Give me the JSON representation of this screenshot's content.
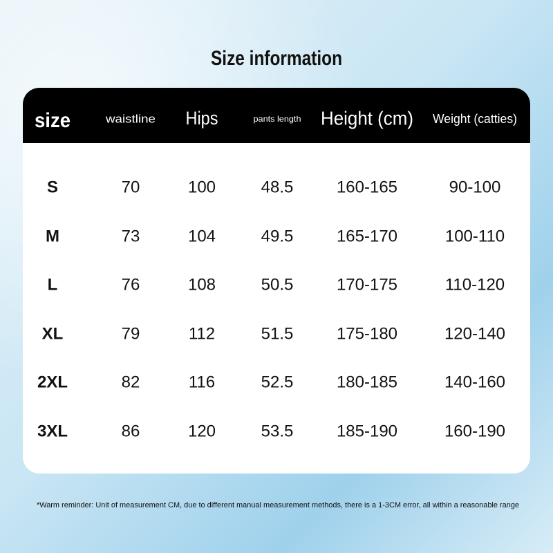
{
  "title": "Size information",
  "table": {
    "header": [
      "size",
      "waistline",
      "Hips",
      "pants length",
      "Height (cm)",
      "Weight (catties)"
    ],
    "rows": [
      [
        "S",
        70,
        100,
        48.5,
        "160-165",
        "90-100"
      ],
      [
        "M",
        73,
        104,
        49.5,
        "165-170",
        "100-110"
      ],
      [
        "L",
        76,
        108,
        50.5,
        "170-175",
        "110-120"
      ],
      [
        "XL",
        79,
        112,
        51.5,
        "175-180",
        "120-140"
      ],
      [
        "2XL",
        82,
        116,
        52.5,
        "180-185",
        "140-160"
      ],
      [
        "3XL",
        86,
        120,
        53.5,
        "185-190",
        "160-190"
      ]
    ]
  },
  "footnote": "*Warm reminder: Unit of measurement CM, due to different manual measurement methods, there is a 1-3CM error, all within a reasonable range"
}
